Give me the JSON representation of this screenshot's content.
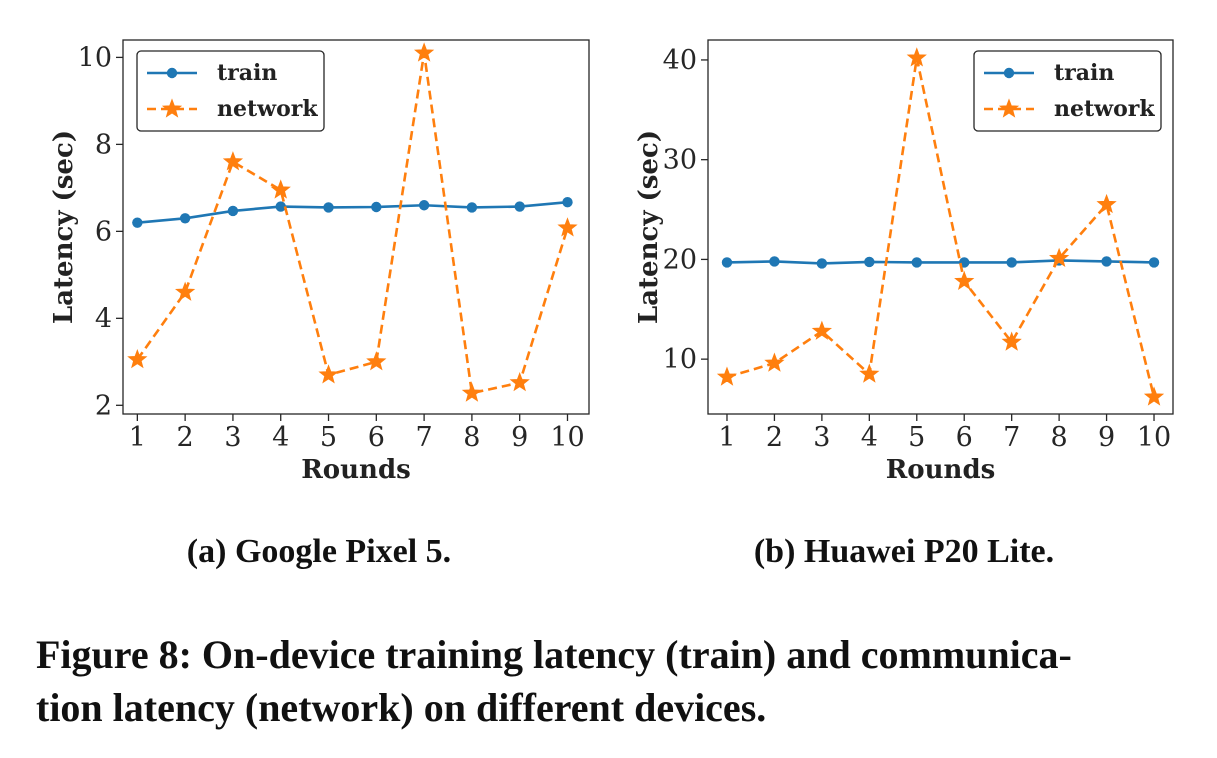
{
  "chart_data": [
    {
      "type": "line",
      "subcaption": "(a) Google Pixel 5.",
      "xlabel": "Rounds",
      "ylabel": "Latency (sec)",
      "x": [
        1,
        2,
        3,
        4,
        5,
        6,
        7,
        8,
        9,
        10
      ],
      "xticks": [
        1,
        2,
        3,
        4,
        5,
        6,
        7,
        8,
        9,
        10
      ],
      "yticks": [
        2,
        4,
        6,
        8,
        10
      ],
      "xlim": [
        0.7,
        10.45
      ],
      "ylim": [
        1.8,
        10.4
      ],
      "legend": "top-left",
      "grid": false,
      "series": [
        {
          "name": "train",
          "color": "#1f77b4",
          "marker": "circle",
          "style": "solid",
          "values": [
            6.2,
            6.3,
            6.47,
            6.57,
            6.55,
            6.56,
            6.6,
            6.55,
            6.57,
            6.67
          ]
        },
        {
          "name": "network",
          "color": "#ff7f0e",
          "marker": "star",
          "style": "dashed",
          "values": [
            3.05,
            4.6,
            7.6,
            6.95,
            2.7,
            3.0,
            10.1,
            2.28,
            2.52,
            6.08
          ]
        }
      ]
    },
    {
      "type": "line",
      "subcaption": "(b) Huawei P20 Lite.",
      "xlabel": "Rounds",
      "ylabel": "Latency (sec)",
      "x": [
        1,
        2,
        3,
        4,
        5,
        6,
        7,
        8,
        9,
        10
      ],
      "xticks": [
        1,
        2,
        3,
        4,
        5,
        6,
        7,
        8,
        9,
        10
      ],
      "yticks": [
        10,
        20,
        30,
        40
      ],
      "xlim": [
        0.6,
        10.4
      ],
      "ylim": [
        4.5,
        42
      ],
      "legend": "top-right",
      "grid": false,
      "series": [
        {
          "name": "train",
          "color": "#1f77b4",
          "marker": "circle",
          "style": "solid",
          "values": [
            19.7,
            19.8,
            19.6,
            19.75,
            19.7,
            19.7,
            19.7,
            19.9,
            19.8,
            19.7
          ]
        },
        {
          "name": "network",
          "color": "#ff7f0e",
          "marker": "star",
          "style": "dashed",
          "values": [
            8.2,
            9.6,
            12.8,
            8.5,
            40.2,
            17.8,
            11.7,
            20.1,
            25.5,
            6.2
          ]
        }
      ]
    }
  ],
  "figure_caption": {
    "line1": "Figure 8: On-device training latency (train) and communica-",
    "line2": "tion latency (network) on different devices."
  }
}
